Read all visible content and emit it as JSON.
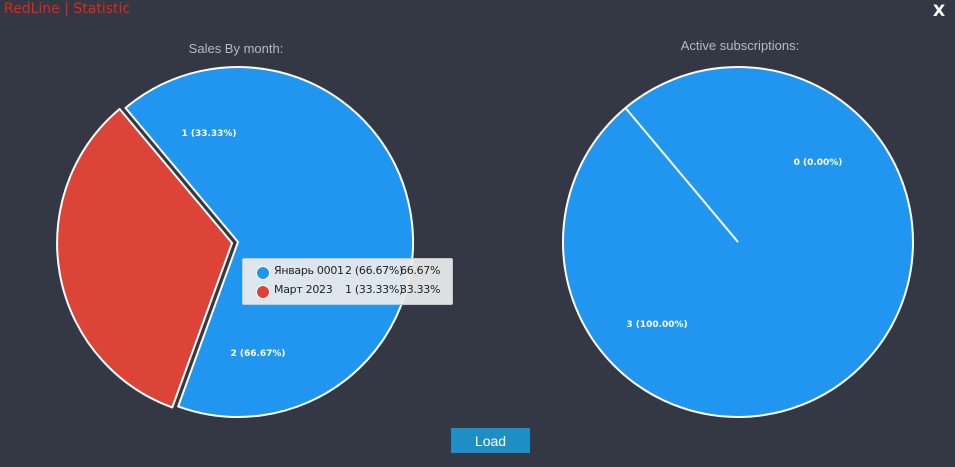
{
  "window": {
    "title": "RedLine | Statistic",
    "close_label": "X"
  },
  "colors": {
    "background": "#343744",
    "title_red": "#e0271f",
    "slice_blue": "#2196f0",
    "slice_red": "#db4437",
    "button_blue": "#1e8fc6"
  },
  "chart_data": [
    {
      "type": "pie",
      "title": "Sales By month:",
      "slices": [
        {
          "name": "Январь 0001",
          "value": 2,
          "label": "2 (66.67%)",
          "percent": "66.67%",
          "color": "#2196f0"
        },
        {
          "name": "Март 2023",
          "value": 1,
          "label": "1 (33.33%)",
          "percent": "33.33%",
          "color": "#db4437"
        }
      ],
      "legend": "center"
    },
    {
      "type": "pie",
      "title": "Active subscriptions:",
      "slices": [
        {
          "value": 3,
          "label": "3 (100.00%)",
          "color": "#2196f0"
        },
        {
          "value": 0,
          "label": "0 (0.00%)",
          "color": "#2196f0"
        }
      ]
    }
  ],
  "actions": {
    "load_label": "Load"
  }
}
